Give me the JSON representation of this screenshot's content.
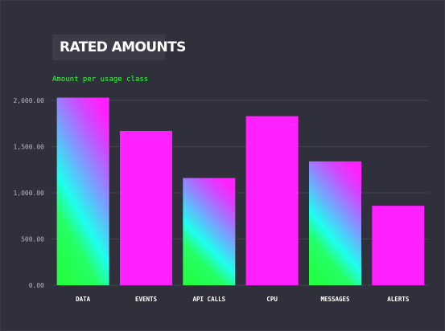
{
  "chart_data": {
    "type": "bar",
    "title": "RATED AMOUNTS",
    "subtitle": "Amount per usage class",
    "xlabel": "",
    "ylabel": "",
    "categories": [
      "DATA",
      "EVENTS",
      "API CALLS",
      "CPU",
      "MESSAGES",
      "ALERTS"
    ],
    "values": [
      2030,
      1670,
      1160,
      1830,
      1340,
      860
    ],
    "ylim": [
      0,
      2000
    ],
    "yticks": [
      0,
      500,
      1000,
      1500,
      2000
    ],
    "ytick_labels": [
      "0.00",
      "500.00",
      "1,000.00",
      "1,500.00",
      "2,000.00"
    ],
    "grid": true,
    "bar_fill": [
      "gradient",
      "solid",
      "gradient",
      "solid",
      "gradient",
      "solid"
    ],
    "colors": {
      "solid": "#ff21ff",
      "gradient_stops": [
        "#22ff44",
        "#1effee",
        "#7c9cff",
        "#ff21ff"
      ],
      "background": "#30303c",
      "grid": "#44444f",
      "subtitle": "#39ff3f"
    }
  }
}
